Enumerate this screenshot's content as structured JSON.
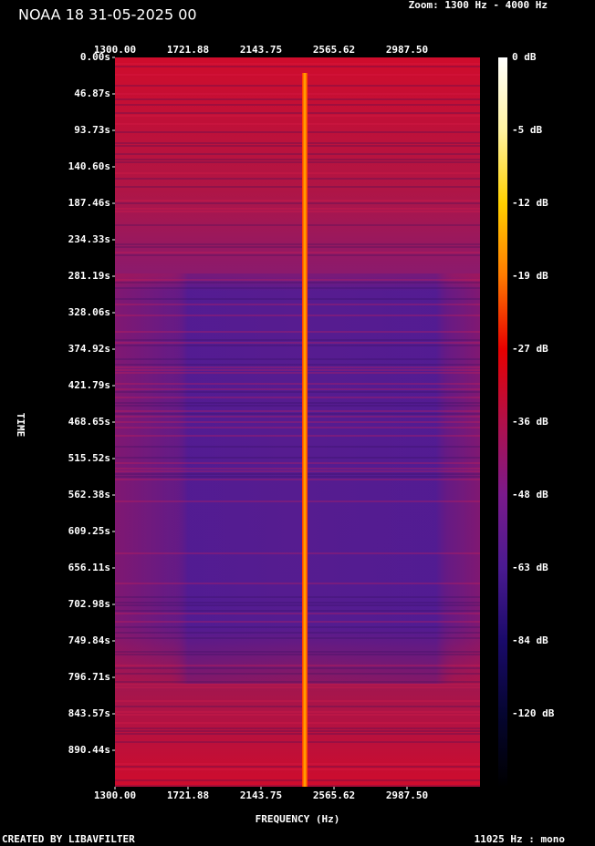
{
  "chart_data": {
    "type": "spectrogram",
    "title": "NOAA 18 31-05-2025 00",
    "zoom_label": "Zoom: 1300 Hz - 4000 Hz",
    "x_label": "FREQUENCY (Hz)",
    "y_label": "TIME",
    "footer_left": "CREATED BY LIBAVFILTER",
    "footer_right": "11025 Hz : mono",
    "xlim": [
      1300,
      3409.375
    ],
    "xticks": [
      {
        "value": 1300,
        "label": "1300.00"
      },
      {
        "value": 1721.875,
        "label": "1721.88"
      },
      {
        "value": 2143.75,
        "label": "2143.75"
      },
      {
        "value": 2565.625,
        "label": "2565.62"
      },
      {
        "value": 2987.5,
        "label": "2987.50"
      }
    ],
    "ylim": [
      0,
      937.3
    ],
    "yticks": [
      {
        "value": 0,
        "label": "0.00s"
      },
      {
        "value": 46.87,
        "label": "46.87s"
      },
      {
        "value": 93.73,
        "label": "93.73s"
      },
      {
        "value": 140.6,
        "label": "140.60s"
      },
      {
        "value": 187.46,
        "label": "187.46s"
      },
      {
        "value": 234.33,
        "label": "234.33s"
      },
      {
        "value": 281.19,
        "label": "281.19s"
      },
      {
        "value": 328.06,
        "label": "328.06s"
      },
      {
        "value": 374.92,
        "label": "374.92s"
      },
      {
        "value": 421.79,
        "label": "421.79s"
      },
      {
        "value": 468.65,
        "label": "468.65s"
      },
      {
        "value": 515.52,
        "label": "515.52s"
      },
      {
        "value": 562.38,
        "label": "562.38s"
      },
      {
        "value": 609.25,
        "label": "609.25s"
      },
      {
        "value": 656.11,
        "label": "656.11s"
      },
      {
        "value": 702.98,
        "label": "702.98s"
      },
      {
        "value": 749.84,
        "label": "749.84s"
      },
      {
        "value": 796.71,
        "label": "796.71s"
      },
      {
        "value": 843.57,
        "label": "843.57s"
      },
      {
        "value": 890.44,
        "label": "890.44s"
      }
    ],
    "colorbar_ticks": [
      {
        "value": 0,
        "label": "0 dB"
      },
      {
        "value": -5,
        "label": "-5 dB"
      },
      {
        "value": -12,
        "label": "-12 dB"
      },
      {
        "value": -19,
        "label": "-19 dB"
      },
      {
        "value": -27,
        "label": "-27 dB"
      },
      {
        "value": -36,
        "label": "-36 dB"
      },
      {
        "value": -48,
        "label": "-48 dB"
      },
      {
        "value": -63,
        "label": "-63 dB"
      },
      {
        "value": -84,
        "label": "-84 dB"
      },
      {
        "value": -120,
        "label": "-120 dB"
      }
    ]
  }
}
